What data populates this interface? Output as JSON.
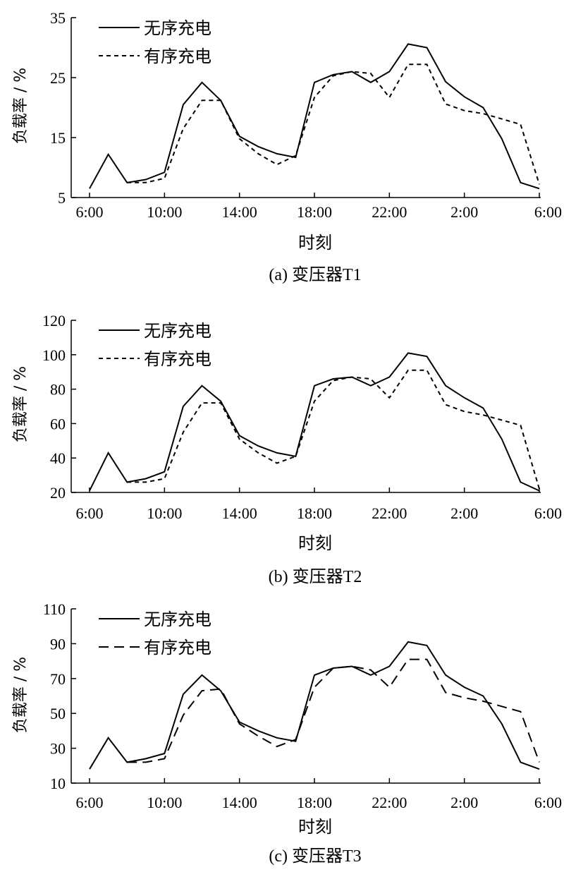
{
  "chart_data": [
    {
      "type": "line",
      "caption": "(a)  变压器T1",
      "xlabel": "时刻",
      "ylabel": "负载率 / %",
      "ylim": [
        5,
        35
      ],
      "yticks": [
        5,
        15,
        25,
        35
      ],
      "x_tick_labels": [
        "6:00",
        "10:00",
        "14:00",
        "18:00",
        "22:00",
        "2:00",
        "6:00"
      ],
      "x_hours_per_point": 1,
      "legend_position": "top-left",
      "series": [
        {
          "name": "无序充电",
          "style": "solid",
          "values": [
            6.5,
            12.2,
            7.5,
            8.0,
            9.2,
            20.5,
            24.2,
            21.2,
            15.2,
            13.5,
            12.3,
            11.7,
            24.2,
            25.5,
            26.0,
            24.2,
            26.0,
            30.6,
            30.0,
            24.3,
            21.8,
            20.0,
            14.8,
            7.5,
            6.5
          ]
        },
        {
          "name": "有序充电",
          "style": "dashed",
          "values": [
            null,
            null,
            7.5,
            7.5,
            8.2,
            16.5,
            21.2,
            21.2,
            14.8,
            12.3,
            10.5,
            12.0,
            21.7,
            25.3,
            26.0,
            25.7,
            21.7,
            27.2,
            27.2,
            20.6,
            19.5,
            19.0,
            18.1,
            17.2,
            7.2
          ]
        }
      ]
    },
    {
      "type": "line",
      "caption": "(b)  变压器T2",
      "xlabel": "时刻",
      "ylabel": "负载率 / %",
      "ylim": [
        20,
        120
      ],
      "yticks": [
        20,
        40,
        60,
        80,
        100,
        120
      ],
      "x_tick_labels": [
        "6:00",
        "10:00",
        "14:00",
        "18:00",
        "22:00",
        "2:00",
        "6:00"
      ],
      "x_hours_per_point": 1,
      "legend_position": "top-left",
      "series": [
        {
          "name": "无序充电",
          "style": "solid",
          "values": [
            21,
            43,
            26,
            28,
            32,
            70,
            82,
            73,
            53,
            47,
            43,
            41,
            82,
            86,
            87,
            82,
            87,
            101,
            99,
            82,
            75,
            69,
            51,
            26,
            21
          ]
        },
        {
          "name": "有序充电",
          "style": "dashed",
          "values": [
            null,
            null,
            26,
            26,
            28,
            55,
            72,
            72,
            51,
            43,
            37,
            41,
            73,
            85,
            87,
            86,
            75,
            91,
            91,
            71,
            67,
            65,
            62,
            59,
            22
          ]
        }
      ]
    },
    {
      "type": "line",
      "caption": "(c)  变压器T3",
      "xlabel": "时刻",
      "ylabel": "负载率 / %",
      "ylim": [
        10,
        110
      ],
      "yticks": [
        10,
        30,
        50,
        70,
        90,
        110
      ],
      "x_tick_labels": [
        "6:00",
        "10:00",
        "14:00",
        "18:00",
        "22:00",
        "2:00",
        "6:00"
      ],
      "x_hours_per_point": 1,
      "legend_position": "top-left",
      "series": [
        {
          "name": "无序充电",
          "style": "solid",
          "values": [
            18,
            36,
            22,
            24,
            27,
            61,
            72,
            63,
            45,
            40,
            36,
            34,
            72,
            76,
            77,
            72,
            77,
            91,
            89,
            72,
            65,
            60,
            44,
            22,
            18
          ]
        },
        {
          "name": "有序充电",
          "style": "dashed",
          "values": [
            null,
            null,
            22,
            22,
            24,
            49,
            63,
            64,
            44,
            37,
            31,
            35,
            65,
            76,
            77,
            75,
            65,
            81,
            81,
            62,
            59,
            57,
            54,
            51,
            22
          ]
        }
      ]
    }
  ]
}
